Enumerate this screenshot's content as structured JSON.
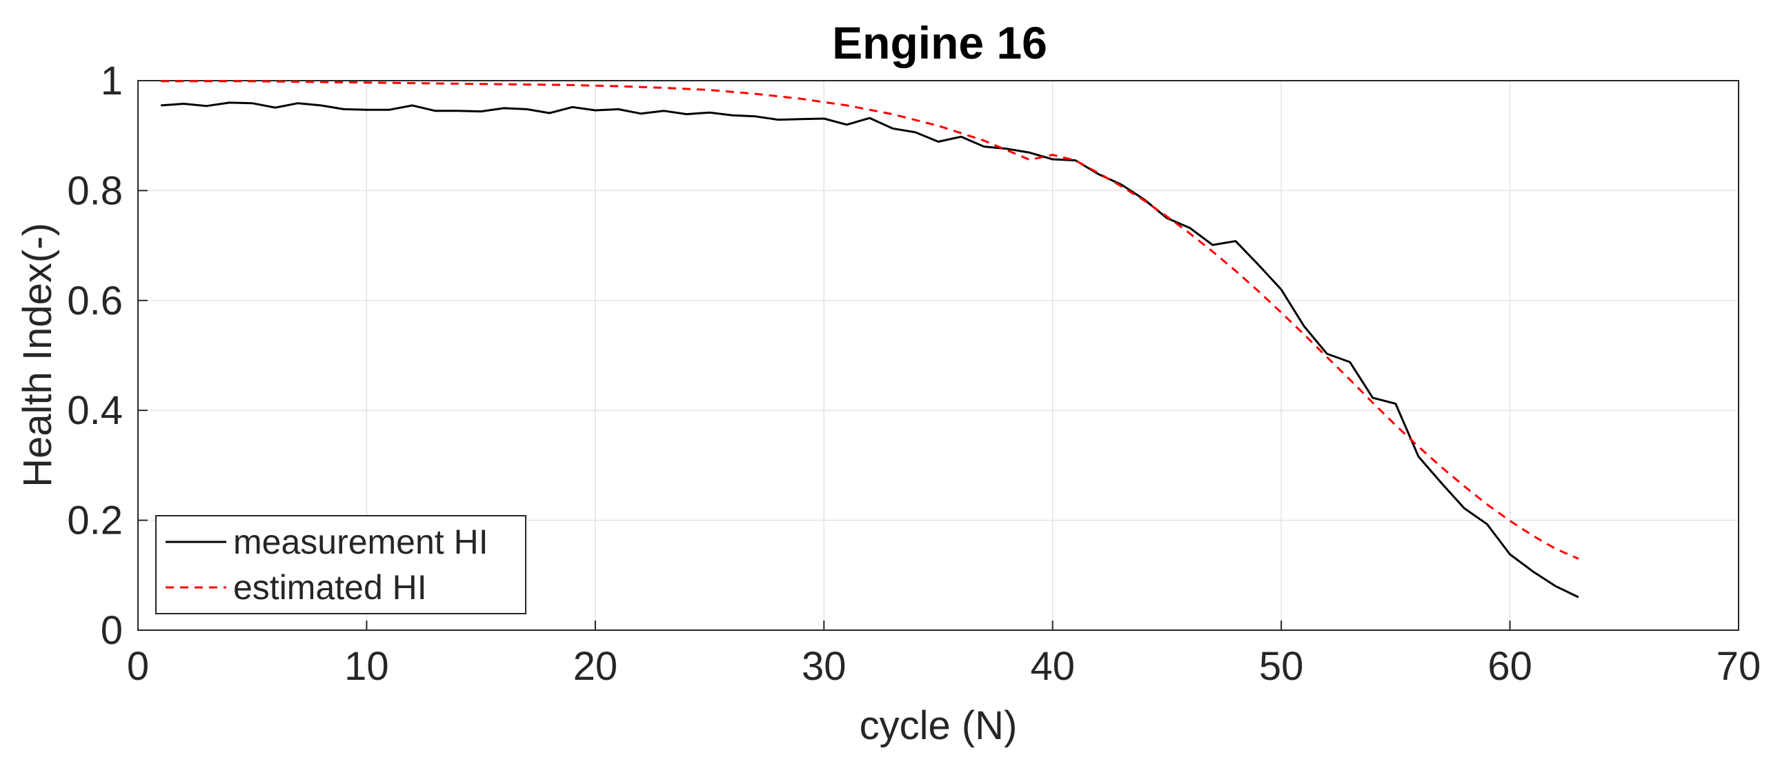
{
  "chart_data": {
    "type": "line",
    "title": "Engine 16",
    "xlabel": "cycle (N)",
    "ylabel": "Health Index(-)",
    "xlim": [
      0,
      70
    ],
    "ylim": [
      0,
      1
    ],
    "xticks": [
      0,
      10,
      20,
      30,
      40,
      50,
      60,
      70
    ],
    "xtick_labels": [
      "0",
      "10",
      "20",
      "30",
      "40",
      "50",
      "60",
      "70"
    ],
    "yticks": [
      0,
      0.2,
      0.4,
      0.6,
      0.8,
      1
    ],
    "ytick_labels": [
      "0",
      "0.2",
      "0.4",
      "0.6",
      "0.8",
      "1"
    ],
    "grid": true,
    "legend_position": "bottom-left",
    "series": [
      {
        "name": "measurement HI",
        "color": "#000000",
        "style": "solid",
        "x": [
          1,
          2,
          3,
          4,
          5,
          6,
          7,
          8,
          9,
          10,
          11,
          12,
          13,
          14,
          15,
          16,
          17,
          18,
          19,
          20,
          21,
          22,
          23,
          24,
          25,
          26,
          27,
          28,
          29,
          30,
          31,
          32,
          33,
          34,
          35,
          36,
          37,
          38,
          39,
          40,
          41,
          42,
          43,
          44,
          45,
          46,
          47,
          48,
          49,
          50,
          51,
          52,
          53,
          54,
          55,
          56,
          57,
          58,
          59,
          60,
          61,
          62,
          63
        ],
        "values": [
          0.955,
          0.958,
          0.954,
          0.96,
          0.959,
          0.951,
          0.959,
          0.955,
          0.948,
          0.947,
          0.947,
          0.955,
          0.945,
          0.945,
          0.944,
          0.95,
          0.948,
          0.941,
          0.952,
          0.946,
          0.948,
          0.94,
          0.945,
          0.939,
          0.942,
          0.937,
          0.935,
          0.929,
          0.93,
          0.931,
          0.92,
          0.932,
          0.913,
          0.906,
          0.889,
          0.898,
          0.88,
          0.876,
          0.869,
          0.857,
          0.855,
          0.83,
          0.811,
          0.784,
          0.75,
          0.732,
          0.701,
          0.708,
          0.665,
          0.62,
          0.553,
          0.503,
          0.488,
          0.423,
          0.412,
          0.316,
          0.268,
          0.222,
          0.193,
          0.138,
          0.107,
          0.08,
          0.06
        ]
      },
      {
        "name": "estimated HI",
        "color": "#ff0000",
        "style": "dashed",
        "x": [
          1,
          3,
          5,
          7,
          9,
          11,
          13,
          15,
          17,
          19,
          21,
          23,
          25,
          27,
          29,
          31,
          33,
          35,
          37,
          39,
          40,
          41,
          42,
          43,
          44,
          45,
          46,
          47,
          48,
          49,
          50,
          51,
          52,
          53,
          54,
          55,
          56,
          57,
          58,
          59,
          60,
          61,
          62,
          63
        ],
        "values": [
          0.999,
          0.999,
          0.999,
          0.998,
          0.997,
          0.996,
          0.995,
          0.994,
          0.993,
          0.992,
          0.99,
          0.987,
          0.983,
          0.976,
          0.967,
          0.955,
          0.939,
          0.918,
          0.891,
          0.856,
          0.865,
          0.855,
          0.832,
          0.808,
          0.782,
          0.753,
          0.722,
          0.689,
          0.654,
          0.617,
          0.578,
          0.538,
          0.497,
          0.456,
          0.414,
          0.373,
          0.334,
          0.297,
          0.262,
          0.229,
          0.199,
          0.172,
          0.148,
          0.13
        ]
      }
    ]
  }
}
